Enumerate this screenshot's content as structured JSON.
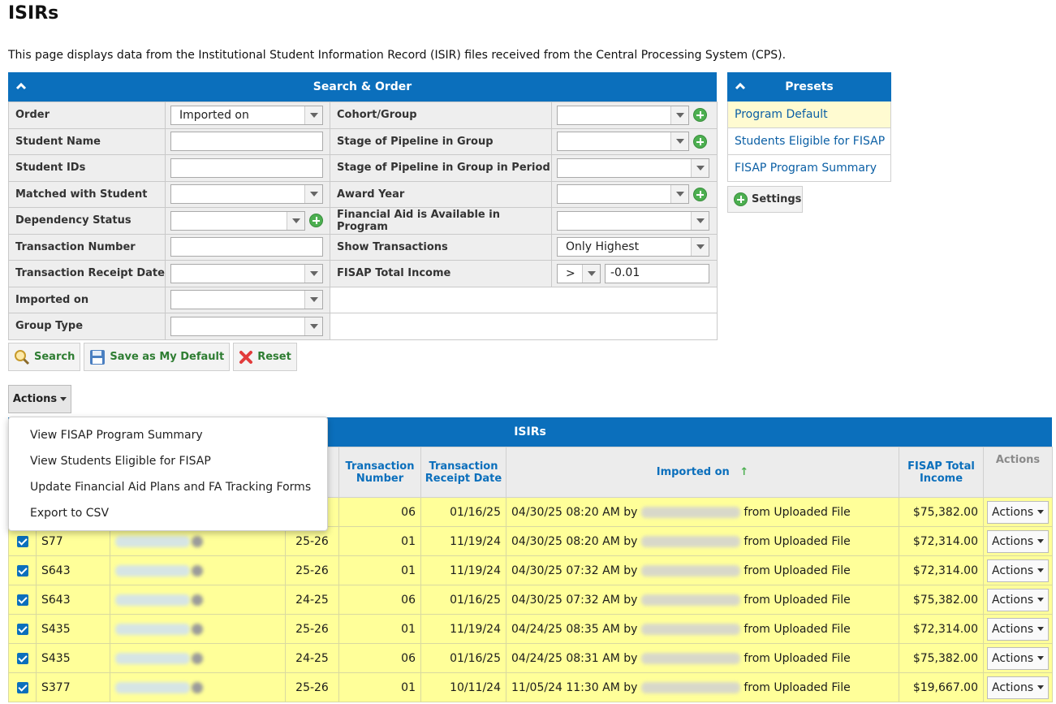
{
  "page": {
    "title": "ISIRs",
    "description": "This page displays data from the Institutional Student Information Record (ISIR) files received from the Central Processing System (CPS)."
  },
  "search": {
    "header": "Search & Order",
    "left": [
      {
        "label": "Order",
        "type": "select",
        "value": "Imported on",
        "plus": false
      },
      {
        "label": "Student Name",
        "type": "text",
        "value": "",
        "plus": false
      },
      {
        "label": "Student IDs",
        "type": "text",
        "value": "",
        "plus": false
      },
      {
        "label": "Matched with Student",
        "type": "select",
        "value": "",
        "plus": false
      },
      {
        "label": "Dependency Status",
        "type": "select",
        "value": "",
        "plus": true
      },
      {
        "label": "Transaction Number",
        "type": "text",
        "value": "",
        "plus": false
      },
      {
        "label": "Transaction Receipt Date",
        "type": "select",
        "value": "",
        "plus": false
      },
      {
        "label": "Imported on",
        "type": "select",
        "value": "",
        "plus": false
      },
      {
        "label": "Group Type",
        "type": "select",
        "value": "",
        "plus": false
      }
    ],
    "right": [
      {
        "label": "Cohort/Group",
        "type": "select",
        "value": "",
        "plus": true
      },
      {
        "label": "Stage of Pipeline in Group",
        "type": "select",
        "value": "",
        "plus": true
      },
      {
        "label": "Stage of Pipeline in Group in Period",
        "type": "select",
        "value": "",
        "plus": false
      },
      {
        "label": "Award Year",
        "type": "select",
        "value": "",
        "plus": true
      },
      {
        "label": "Financial Aid is Available in Program",
        "type": "select",
        "value": "",
        "plus": false
      },
      {
        "label": "Show Transactions",
        "type": "select",
        "value": "Only Highest",
        "plus": false
      },
      {
        "label": "FISAP Total Income",
        "type": "compare",
        "operator": ">",
        "value": "-0.01",
        "plus": false
      }
    ],
    "buttons": {
      "search": "Search",
      "save_default": "Save as My Default",
      "reset": "Reset"
    }
  },
  "presets": {
    "header": "Presets",
    "items": [
      {
        "label": "Program Default",
        "active": true
      },
      {
        "label": "Students Eligible for FISAP",
        "active": false
      },
      {
        "label": "FISAP Program Summary",
        "active": false
      }
    ],
    "settings_label": "Settings"
  },
  "actions_label": "Actions",
  "actions_menu": [
    "View FISAP Program Summary",
    "View Students Eligible for FISAP",
    "Update Financial Aid Plans and FA Tracking Forms",
    "Export to CSV"
  ],
  "results": {
    "header": "ISIRs",
    "columns": {
      "award_year_tail": "d",
      "transaction_number": "Transaction Number",
      "transaction_receipt_date": "Transaction Receipt Date",
      "imported_on": "Imported on",
      "sort_indicator": "↑",
      "fisap_total_income": "FISAP Total Income",
      "actions": "Actions"
    },
    "imported_by_word": "by",
    "rows": [
      {
        "checked": true,
        "student_id": "",
        "award_year": "",
        "transaction_number": "06",
        "receipt_date": "01/16/25",
        "imported_on": "04/30/25 08:20 AM",
        "source": "from Uploaded File",
        "fisap_income": "$75,382.00",
        "action": "Actions"
      },
      {
        "checked": true,
        "student_id": "S77",
        "award_year": "25-26",
        "transaction_number": "01",
        "receipt_date": "11/19/24",
        "imported_on": "04/30/25 08:20 AM",
        "source": "from Uploaded File",
        "fisap_income": "$72,314.00",
        "action": "Actions"
      },
      {
        "checked": true,
        "student_id": "S643",
        "award_year": "25-26",
        "transaction_number": "01",
        "receipt_date": "11/19/24",
        "imported_on": "04/30/25 07:32 AM",
        "source": "from Uploaded File",
        "fisap_income": "$72,314.00",
        "action": "Actions"
      },
      {
        "checked": true,
        "student_id": "S643",
        "award_year": "24-25",
        "transaction_number": "06",
        "receipt_date": "01/16/25",
        "imported_on": "04/30/25 07:32 AM",
        "source": "from Uploaded File",
        "fisap_income": "$75,382.00",
        "action": "Actions"
      },
      {
        "checked": true,
        "student_id": "S435",
        "award_year": "25-26",
        "transaction_number": "01",
        "receipt_date": "11/19/24",
        "imported_on": "04/24/25 08:35 AM",
        "source": "from Uploaded File",
        "fisap_income": "$72,314.00",
        "action": "Actions"
      },
      {
        "checked": true,
        "student_id": "S435",
        "award_year": "24-25",
        "transaction_number": "06",
        "receipt_date": "01/16/25",
        "imported_on": "04/24/25 08:31 AM",
        "source": "from Uploaded File",
        "fisap_income": "$75,382.00",
        "action": "Actions"
      },
      {
        "checked": true,
        "student_id": "S377",
        "award_year": "25-26",
        "transaction_number": "01",
        "receipt_date": "10/11/24",
        "imported_on": "11/05/24 11:30 AM",
        "source": "from Uploaded File",
        "fisap_income": "$19,667.00",
        "action": "Actions"
      }
    ]
  },
  "colors": {
    "header_blue": "#0b6fbc",
    "row_highlight": "#ffff99",
    "preset_active": "#fffbd1",
    "link_blue": "#0b5fa5",
    "button_green": "#2e7d32"
  }
}
